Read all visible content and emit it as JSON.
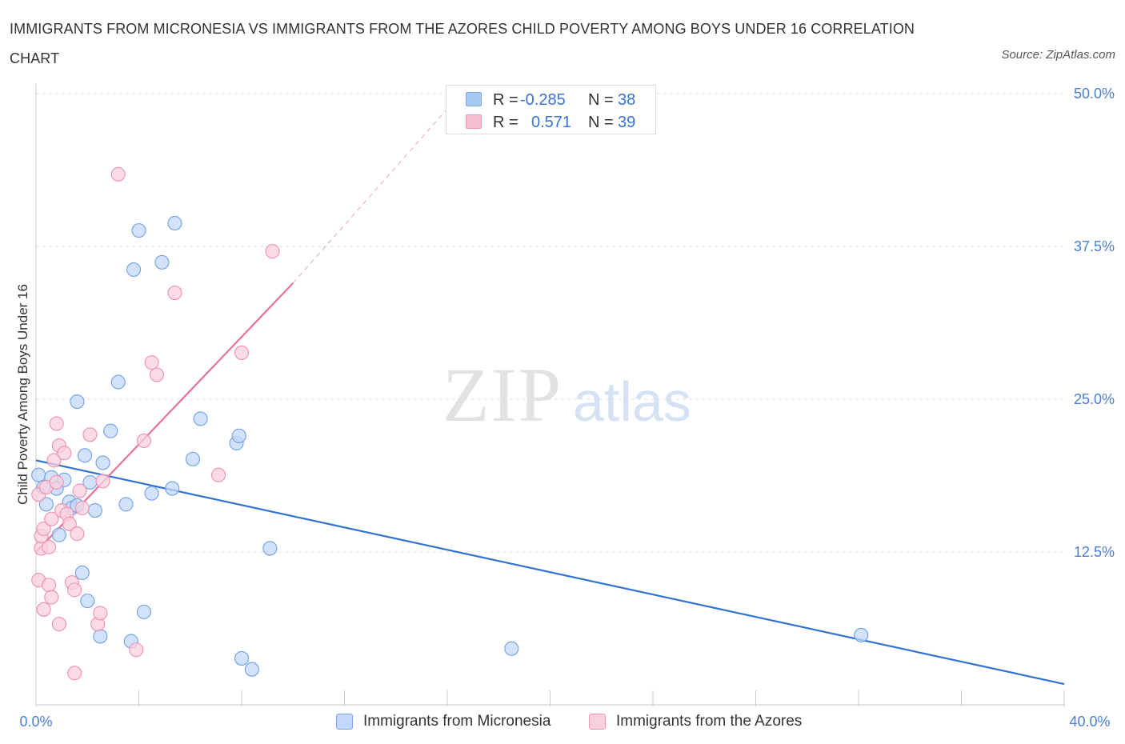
{
  "title": "IMMIGRANTS FROM MICRONESIA VS IMMIGRANTS FROM THE AZORES CHILD POVERTY AMONG BOYS UNDER 16 CORRELATION CHART",
  "source": "Source: ZipAtlas.com",
  "watermark": {
    "zip": "ZIP",
    "atlas": "atlas"
  },
  "legend": {
    "rows": [
      {
        "r_label": "R =",
        "r_value": "-0.285",
        "n_label": "N =",
        "n_value": "38",
        "color": "#a8c8f4",
        "border": "#7aa8e8"
      },
      {
        "r_label": "R =",
        "r_value": "0.571",
        "n_label": "N =",
        "n_value": "39",
        "color": "#f7bdd0",
        "border": "#ef98b5"
      }
    ],
    "bottom": [
      {
        "label": "Immigrants from Micronesia",
        "color": "#c3d8f8",
        "border": "#7aa8e8"
      },
      {
        "label": "Immigrants from the Azores",
        "color": "#f9d0de",
        "border": "#ef98b5"
      }
    ]
  },
  "chart_data": {
    "type": "scatter",
    "title": "IMMIGRANTS FROM MICRONESIA VS IMMIGRANTS FROM THE AZORES CHILD POVERTY AMONG BOYS UNDER 16 CORRELATION CHART",
    "xlabel": "",
    "ylabel": "Child Poverty Among Boys Under 16",
    "xlim": [
      0,
      40
    ],
    "ylim": [
      0,
      50
    ],
    "x_tick_labels": [
      "0.0%",
      "40.0%"
    ],
    "y_ticks": [
      12.5,
      25.0,
      37.5,
      50.0
    ],
    "y_tick_labels": [
      "12.5%",
      "25.0%",
      "37.5%",
      "50.0%"
    ],
    "grid": true,
    "series": [
      {
        "name": "Immigrants from Micronesia",
        "color": "#6f9fe4",
        "fill": "#c3d8f8",
        "R": -0.285,
        "N": 38,
        "trend": {
          "x0": 0,
          "y0": 20.0,
          "x1": 40,
          "y1": 1.7
        },
        "points": [
          [
            0.1,
            18.8
          ],
          [
            0.3,
            17.8
          ],
          [
            0.4,
            16.4
          ],
          [
            0.6,
            18.6
          ],
          [
            0.8,
            17.7
          ],
          [
            0.9,
            13.9
          ],
          [
            1.1,
            18.4
          ],
          [
            1.3,
            16.6
          ],
          [
            1.4,
            16.1
          ],
          [
            1.6,
            16.3
          ],
          [
            1.6,
            24.8
          ],
          [
            1.8,
            10.8
          ],
          [
            1.9,
            20.4
          ],
          [
            2.0,
            8.5
          ],
          [
            2.1,
            18.2
          ],
          [
            2.3,
            15.9
          ],
          [
            2.5,
            5.6
          ],
          [
            2.6,
            19.8
          ],
          [
            2.9,
            22.4
          ],
          [
            3.2,
            26.4
          ],
          [
            3.5,
            16.4
          ],
          [
            3.7,
            5.2
          ],
          [
            3.8,
            35.6
          ],
          [
            4.0,
            38.8
          ],
          [
            4.2,
            7.6
          ],
          [
            4.5,
            17.3
          ],
          [
            4.9,
            36.2
          ],
          [
            5.3,
            17.7
          ],
          [
            5.4,
            39.4
          ],
          [
            6.1,
            20.1
          ],
          [
            6.4,
            23.4
          ],
          [
            7.8,
            21.4
          ],
          [
            7.9,
            22.0
          ],
          [
            8.0,
            3.8
          ],
          [
            8.4,
            2.9
          ],
          [
            9.1,
            12.8
          ],
          [
            18.5,
            4.6
          ],
          [
            32.1,
            5.7
          ]
        ]
      },
      {
        "name": "Immigrants from the Azores",
        "color": "#ef8fb0",
        "fill": "#f9d0de",
        "R": 0.571,
        "N": 39,
        "trend": {
          "x0": 0,
          "y0": 12.5,
          "x1": 10.0,
          "y1": 34.5,
          "dash_to": [
            16.4,
            49.7
          ]
        },
        "points": [
          [
            0.1,
            17.2
          ],
          [
            0.1,
            10.2
          ],
          [
            0.2,
            12.8
          ],
          [
            0.2,
            13.8
          ],
          [
            0.3,
            7.8
          ],
          [
            0.3,
            14.4
          ],
          [
            0.4,
            17.8
          ],
          [
            0.5,
            9.8
          ],
          [
            0.5,
            12.9
          ],
          [
            0.6,
            15.2
          ],
          [
            0.6,
            8.8
          ],
          [
            0.7,
            20.0
          ],
          [
            0.8,
            23.0
          ],
          [
            0.8,
            18.2
          ],
          [
            0.9,
            21.2
          ],
          [
            0.9,
            6.6
          ],
          [
            1.0,
            15.9
          ],
          [
            1.1,
            20.6
          ],
          [
            1.2,
            15.6
          ],
          [
            1.3,
            14.8
          ],
          [
            1.4,
            10.0
          ],
          [
            1.5,
            9.4
          ],
          [
            1.5,
            2.6
          ],
          [
            1.6,
            14.0
          ],
          [
            1.7,
            17.5
          ],
          [
            1.8,
            16.1
          ],
          [
            2.1,
            22.1
          ],
          [
            2.4,
            6.6
          ],
          [
            2.5,
            7.5
          ],
          [
            2.6,
            18.3
          ],
          [
            3.2,
            43.4
          ],
          [
            3.9,
            4.5
          ],
          [
            4.2,
            21.6
          ],
          [
            4.5,
            28.0
          ],
          [
            4.7,
            27.0
          ],
          [
            5.4,
            33.7
          ],
          [
            7.1,
            18.8
          ],
          [
            8.0,
            28.8
          ],
          [
            9.2,
            37.1
          ]
        ]
      }
    ]
  }
}
